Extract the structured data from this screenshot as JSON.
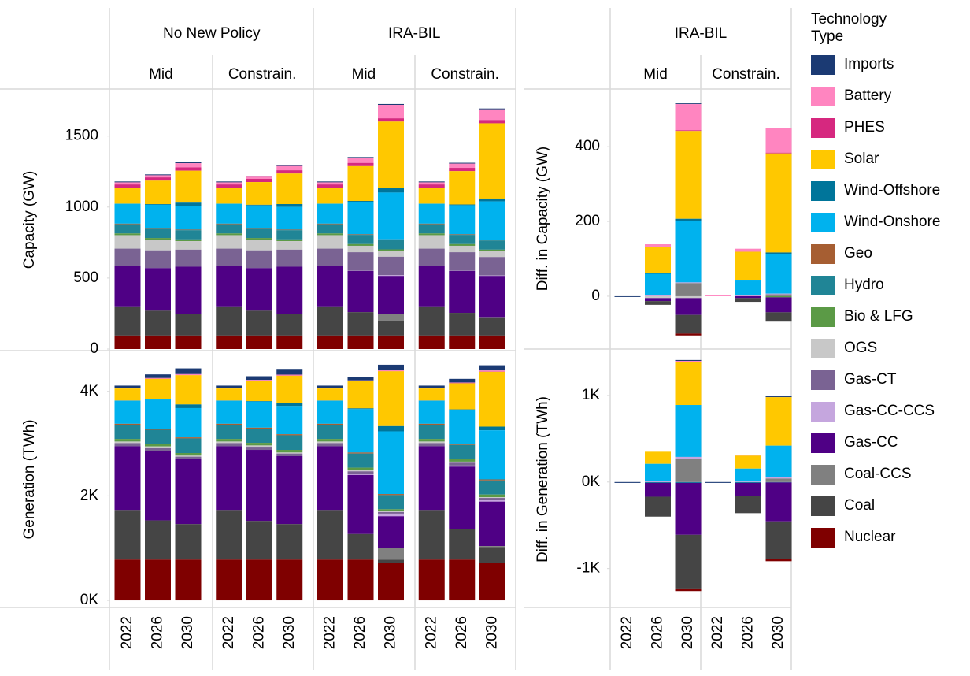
{
  "chart_data": [
    {
      "type": "stacked-bar",
      "legend_title": "Technology Type",
      "facets": [
        {
          "label": "No New Policy",
          "subfacets": [
            "Mid",
            "Constrain."
          ]
        },
        {
          "label": "IRA-BIL",
          "subfacets": [
            "Mid",
            "Constrain."
          ]
        }
      ],
      "ylabel": "Capacity (GW)",
      "ylim": [
        0,
        1820
      ],
      "yticks": [
        0,
        500,
        1000,
        1500
      ],
      "series": [
        {
          "name": "Imports",
          "color": "#1b3a73",
          "values": [
            6,
            6,
            6,
            6,
            6,
            6,
            6,
            6,
            6,
            6,
            6,
            6
          ]
        },
        {
          "name": "Battery",
          "color": "#ff85c0",
          "values": [
            15,
            15,
            30,
            15,
            15,
            30,
            15,
            35,
            95,
            15,
            30,
            75
          ]
        },
        {
          "name": "PHES",
          "color": "#d6287f",
          "values": [
            23,
            23,
            23,
            23,
            23,
            23,
            23,
            23,
            23,
            23,
            23,
            23
          ]
        },
        {
          "name": "Solar",
          "color": "#ffc800",
          "values": [
            112,
            165,
            225,
            112,
            160,
            215,
            112,
            245,
            470,
            112,
            235,
            530
          ]
        },
        {
          "name": "Wind-Offshore",
          "color": "#00759a",
          "values": [
            1,
            5,
            25,
            1,
            5,
            20,
            1,
            10,
            30,
            1,
            5,
            20
          ]
        },
        {
          "name": "Wind-Onshore",
          "color": "#00b2ee",
          "values": [
            140,
            165,
            165,
            140,
            160,
            160,
            140,
            225,
            330,
            140,
            205,
            270
          ]
        },
        {
          "name": "Geo",
          "color": "#a65e32",
          "values": [
            4,
            4,
            4,
            4,
            4,
            4,
            4,
            4,
            5,
            4,
            4,
            5
          ]
        },
        {
          "name": "Hydro",
          "color": "#208596",
          "values": [
            65,
            65,
            65,
            65,
            65,
            65,
            65,
            65,
            65,
            65,
            65,
            65
          ]
        },
        {
          "name": "Bio & LFG",
          "color": "#5b9a46",
          "values": [
            12,
            12,
            12,
            12,
            12,
            12,
            12,
            12,
            12,
            12,
            12,
            12
          ]
        },
        {
          "name": "OGS",
          "color": "#c8c8c8",
          "values": [
            95,
            75,
            60,
            95,
            75,
            60,
            95,
            45,
            40,
            95,
            45,
            40
          ]
        },
        {
          "name": "Gas-CT",
          "color": "#7a6393",
          "values": [
            122,
            125,
            120,
            122,
            125,
            120,
            122,
            130,
            130,
            122,
            130,
            130
          ]
        },
        {
          "name": "Gas-CC-CCS",
          "color": "#c5a6de",
          "values": [
            0,
            0,
            0,
            0,
            0,
            0,
            0,
            2,
            5,
            0,
            2,
            3
          ]
        },
        {
          "name": "Gas-CC",
          "color": "#4f0085",
          "values": [
            290,
            300,
            335,
            290,
            300,
            335,
            290,
            290,
            270,
            290,
            295,
            290
          ]
        },
        {
          "name": "Coal-CCS",
          "color": "#808080",
          "values": [
            0,
            0,
            0,
            0,
            0,
            0,
            0,
            0,
            45,
            0,
            0,
            5
          ]
        },
        {
          "name": "Coal",
          "color": "#454545",
          "values": [
            200,
            175,
            150,
            200,
            175,
            150,
            200,
            165,
            105,
            200,
            160,
            125
          ]
        },
        {
          "name": "Nuclear",
          "color": "#7f0000",
          "values": [
            95,
            95,
            95,
            95,
            95,
            95,
            95,
            95,
            95,
            95,
            95,
            95
          ]
        }
      ]
    },
    {
      "type": "stacked-bar",
      "ylabel": "Generation (TWh)",
      "ylim": [
        -120,
        4750
      ],
      "yticks": [
        {
          "value": 0,
          "label": "0K"
        },
        {
          "value": 2000,
          "label": "2K"
        },
        {
          "value": 4000,
          "label": "4K"
        }
      ],
      "categories": [
        "2022",
        "2026",
        "2030",
        "2022",
        "2026",
        "2030",
        "2022",
        "2026",
        "2030",
        "2022",
        "2026",
        "2030"
      ],
      "series": [
        {
          "name": "Imports",
          "color": "#1b3a73",
          "values": [
            45,
            70,
            110,
            45,
            70,
            110,
            45,
            60,
            100,
            45,
            70,
            100
          ]
        },
        {
          "name": "Battery",
          "color": "#ff85c0",
          "values": [
            5,
            10,
            15,
            5,
            10,
            15,
            5,
            10,
            20,
            5,
            10,
            20
          ]
        },
        {
          "name": "PHES",
          "color": "#d6287f",
          "values": [
            5,
            5,
            5,
            5,
            5,
            5,
            5,
            5,
            5,
            5,
            5,
            5
          ]
        },
        {
          "name": "Solar",
          "color": "#ffc800",
          "values": [
            230,
            380,
            560,
            230,
            390,
            530,
            230,
            520,
            1050,
            230,
            500,
            1050
          ]
        },
        {
          "name": "Wind-Offshore",
          "color": "#00759a",
          "values": [
            5,
            15,
            70,
            5,
            10,
            50,
            5,
            15,
            100,
            5,
            10,
            70
          ]
        },
        {
          "name": "Wind-Onshore",
          "color": "#00b2ee",
          "values": [
            440,
            560,
            560,
            440,
            500,
            540,
            440,
            830,
            1200,
            440,
            650,
            940
          ]
        },
        {
          "name": "Geo",
          "color": "#a65e32",
          "values": [
            20,
            20,
            20,
            20,
            20,
            20,
            20,
            20,
            20,
            20,
            20,
            20
          ]
        },
        {
          "name": "Hydro",
          "color": "#208596",
          "values": [
            270,
            270,
            280,
            270,
            270,
            280,
            270,
            270,
            270,
            270,
            270,
            270
          ]
        },
        {
          "name": "Bio & LFG",
          "color": "#5b9a46",
          "values": [
            50,
            50,
            50,
            50,
            50,
            50,
            50,
            50,
            40,
            50,
            50,
            50
          ]
        },
        {
          "name": "OGS",
          "color": "#c8c8c8",
          "values": [
            30,
            25,
            20,
            30,
            25,
            20,
            30,
            20,
            15,
            30,
            20,
            15
          ]
        },
        {
          "name": "Gas-CT",
          "color": "#7a6393",
          "values": [
            60,
            60,
            50,
            60,
            60,
            50,
            60,
            50,
            30,
            60,
            55,
            40
          ]
        },
        {
          "name": "Gas-CC-CCS",
          "color": "#c5a6de",
          "values": [
            0,
            0,
            0,
            0,
            0,
            0,
            0,
            20,
            50,
            0,
            20,
            30
          ]
        },
        {
          "name": "Gas-CC",
          "color": "#4f0085",
          "values": [
            1220,
            1330,
            1240,
            1220,
            1360,
            1300,
            1220,
            1130,
            600,
            1220,
            1200,
            850
          ]
        },
        {
          "name": "Coal-CCS",
          "color": "#808080",
          "values": [
            0,
            0,
            0,
            0,
            0,
            0,
            0,
            0,
            230,
            0,
            0,
            20
          ]
        },
        {
          "name": "Coal",
          "color": "#454545",
          "values": [
            950,
            750,
            680,
            950,
            740,
            680,
            950,
            490,
            60,
            950,
            580,
            300
          ]
        },
        {
          "name": "Nuclear",
          "color": "#7f0000",
          "values": [
            780,
            780,
            780,
            780,
            780,
            780,
            780,
            780,
            720,
            780,
            780,
            720
          ]
        }
      ]
    },
    {
      "type": "stacked-bar",
      "facets": [
        {
          "label": "IRA-BIL",
          "subfacets": [
            "Mid",
            "Constrain."
          ]
        }
      ],
      "ylabel": "Diff. in Capacity (GW)",
      "ylim": [
        -135,
        550
      ],
      "yticks": [
        0,
        200,
        400
      ],
      "series": [
        {
          "name": "Imports",
          "color": "#1b3a73",
          "values": [
            -2,
            0,
            2,
            0,
            0,
            0
          ]
        },
        {
          "name": "Battery",
          "color": "#ff85c0",
          "values": [
            0,
            7,
            70,
            3,
            8,
            65
          ]
        },
        {
          "name": "PHES",
          "color": "#d6287f",
          "values": [
            0,
            0,
            2,
            0,
            0,
            2
          ]
        },
        {
          "name": "Solar",
          "color": "#ffc800",
          "values": [
            0,
            70,
            235,
            0,
            75,
            265
          ]
        },
        {
          "name": "Wind-Offshore",
          "color": "#00759a",
          "values": [
            0,
            2,
            5,
            0,
            2,
            5
          ]
        },
        {
          "name": "Wind-Onshore",
          "color": "#00b2ee",
          "values": [
            0,
            58,
            165,
            0,
            40,
            105
          ]
        },
        {
          "name": "Geo",
          "color": "#a65e32",
          "values": [
            0,
            0,
            0,
            0,
            0,
            0
          ]
        },
        {
          "name": "Hydro",
          "color": "#208596",
          "values": [
            0,
            0,
            0,
            0,
            0,
            0
          ]
        },
        {
          "name": "Bio & LFG",
          "color": "#5b9a46",
          "values": [
            0,
            0,
            0,
            0,
            0,
            -3
          ]
        },
        {
          "name": "OGS",
          "color": "#c8c8c8",
          "values": [
            0,
            -5,
            -5,
            0,
            0,
            0
          ]
        },
        {
          "name": "Gas-CT",
          "color": "#7a6393",
          "values": [
            0,
            0,
            0,
            0,
            0,
            0
          ]
        },
        {
          "name": "Gas-CC-CCS",
          "color": "#c5a6de",
          "values": [
            0,
            2,
            2,
            0,
            2,
            2
          ]
        },
        {
          "name": "Gas-CC",
          "color": "#4f0085",
          "values": [
            0,
            -8,
            -45,
            0,
            -5,
            -40
          ]
        },
        {
          "name": "Coal-CCS",
          "color": "#808080",
          "values": [
            0,
            0,
            35,
            0,
            0,
            5
          ]
        },
        {
          "name": "Coal",
          "color": "#454545",
          "values": [
            0,
            -10,
            -50,
            0,
            -10,
            -25
          ]
        },
        {
          "name": "Nuclear",
          "color": "#7f0000",
          "values": [
            0,
            0,
            -5,
            0,
            0,
            0
          ]
        }
      ]
    },
    {
      "type": "stacked-bar",
      "ylabel": "Diff. in Generation (TWh)",
      "ylim": [
        -1440,
        1500
      ],
      "yticks": [
        {
          "value": -1000,
          "label": "-1K"
        },
        {
          "value": 0,
          "label": "0K"
        },
        {
          "value": 1000,
          "label": "1K"
        }
      ],
      "categories": [
        "2022",
        "2026",
        "2030",
        "2022",
        "2026",
        "2030"
      ],
      "series": [
        {
          "name": "Imports",
          "color": "#1b3a73",
          "values": [
            -10,
            0,
            10,
            -10,
            0,
            10
          ]
        },
        {
          "name": "Battery",
          "color": "#ff85c0",
          "values": [
            0,
            0,
            10,
            0,
            5,
            0
          ]
        },
        {
          "name": "PHES",
          "color": "#d6287f",
          "values": [
            0,
            0,
            0,
            0,
            0,
            0
          ]
        },
        {
          "name": "Solar",
          "color": "#ffc800",
          "values": [
            0,
            140,
            500,
            0,
            150,
            560
          ]
        },
        {
          "name": "Wind-Offshore",
          "color": "#00759a",
          "values": [
            0,
            -10,
            -10,
            0,
            -10,
            -5
          ]
        },
        {
          "name": "Wind-Onshore",
          "color": "#00b2ee",
          "values": [
            0,
            200,
            600,
            0,
            150,
            360
          ]
        },
        {
          "name": "Geo",
          "color": "#a65e32",
          "values": [
            0,
            0,
            0,
            0,
            0,
            0
          ]
        },
        {
          "name": "Hydro",
          "color": "#208596",
          "values": [
            0,
            0,
            0,
            0,
            0,
            0
          ]
        },
        {
          "name": "Bio & LFG",
          "color": "#5b9a46",
          "values": [
            0,
            0,
            0,
            0,
            0,
            0
          ]
        },
        {
          "name": "OGS",
          "color": "#c8c8c8",
          "values": [
            0,
            0,
            0,
            0,
            0,
            0
          ]
        },
        {
          "name": "Gas-CT",
          "color": "#7a6393",
          "values": [
            0,
            0,
            0,
            0,
            0,
            0
          ]
        },
        {
          "name": "Gas-CC-CCS",
          "color": "#c5a6de",
          "values": [
            0,
            10,
            20,
            0,
            5,
            20
          ]
        },
        {
          "name": "Gas-CC",
          "color": "#4f0085",
          "values": [
            0,
            -160,
            -600,
            0,
            -150,
            -450
          ]
        },
        {
          "name": "Coal-CCS",
          "color": "#808080",
          "values": [
            0,
            0,
            270,
            0,
            0,
            40
          ]
        },
        {
          "name": "Coal",
          "color": "#454545",
          "values": [
            0,
            -230,
            -620,
            0,
            -200,
            -430
          ]
        },
        {
          "name": "Nuclear",
          "color": "#7f0000",
          "values": [
            0,
            0,
            -30,
            0,
            0,
            -30
          ]
        }
      ]
    }
  ]
}
